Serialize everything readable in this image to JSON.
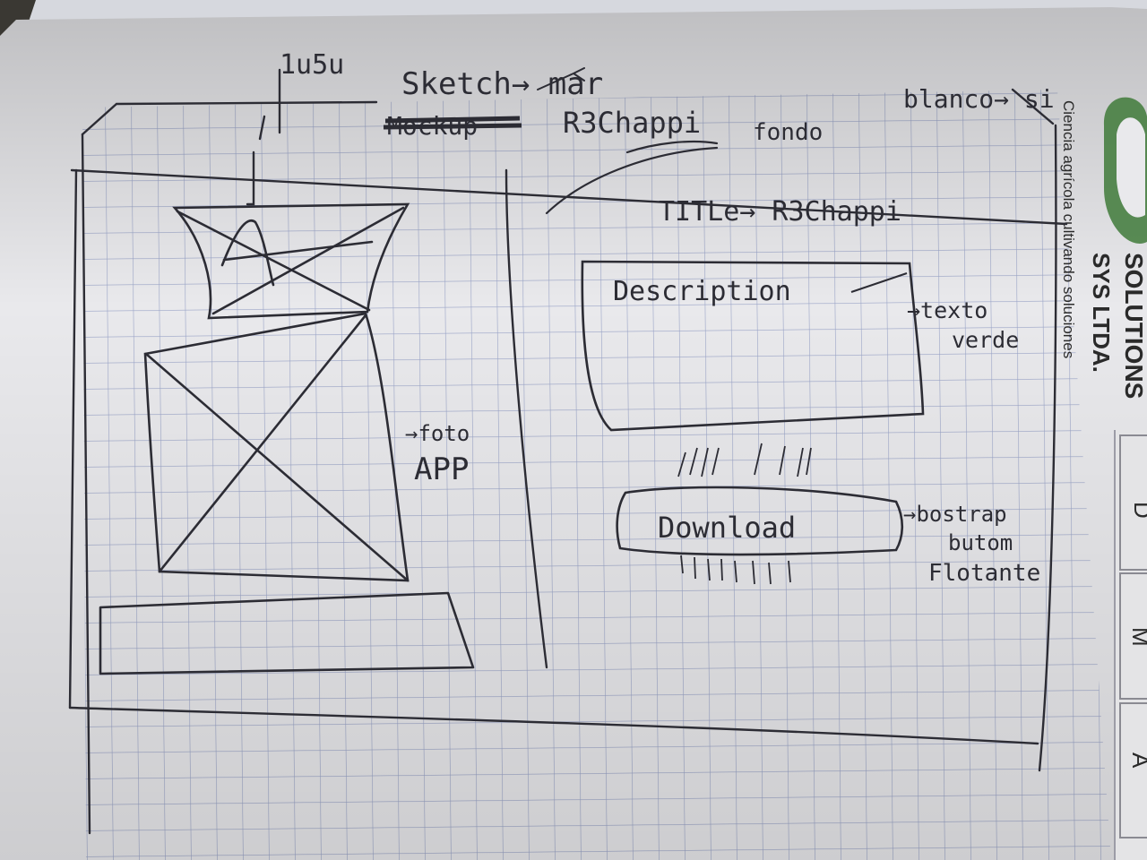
{
  "notes": {
    "logo_label": "logo",
    "top_left": "1u5u",
    "sketch_arrow": "Sketch→ mar",
    "crossed_out": "Mockup",
    "app_name": "R3Chappi",
    "fondo": "fondo",
    "blanco": "blanco→ si",
    "title": "TITLe→ R3Chappi",
    "description": "Description",
    "texto_1": "→texto",
    "texto_2": "verde",
    "foto_1": "→foto",
    "foto_2": "APP",
    "download": "Download",
    "boton_1": "→bostrap",
    "boton_2": "butom",
    "boton_3": "Flotante"
  },
  "stamp": {
    "line1": "SOLUTIONS",
    "line2": "SYS LTDA.",
    "tagline": "Ciencia agrícola cultivando soluciones",
    "colors": {
      "brand": "#3f7a3a",
      "ink": "#232323"
    }
  },
  "tabs": [
    "D",
    "M",
    "A"
  ],
  "colors": {
    "paper": "#e9e9ec",
    "grid": "#9aa4c7",
    "ink": "#2c2c34"
  }
}
